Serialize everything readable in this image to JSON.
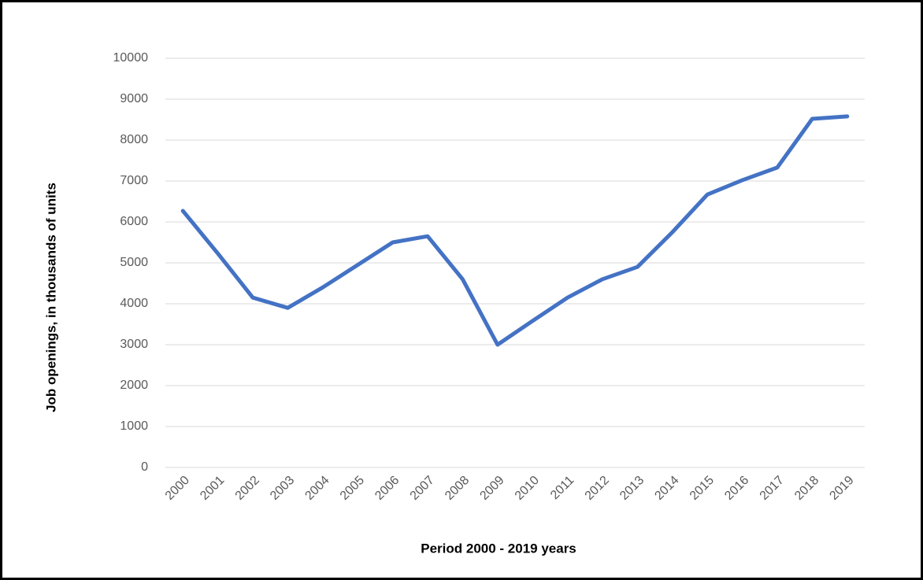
{
  "chart_data": {
    "type": "line",
    "x_label": "Period 2000 - 2019 years",
    "y_label": "Job openings, in thousands of units",
    "categories": [
      "2000",
      "2001",
      "2002",
      "2003",
      "2004",
      "2005",
      "2006",
      "2007",
      "2008",
      "2009",
      "2010",
      "2011",
      "2012",
      "2013",
      "2014",
      "2015",
      "2016",
      "2017",
      "2018",
      "2019"
    ],
    "series": [
      {
        "name": "Job openings",
        "color": "#4472c4",
        "values": [
          6270,
          5230,
          4150,
          3900,
          4400,
          4950,
          5500,
          5650,
          4600,
          3000,
          3580,
          4150,
          4600,
          4900,
          5750,
          6670,
          7020,
          7330,
          8520,
          8580
        ]
      }
    ],
    "ylim": [
      0,
      10000
    ],
    "yticks": [
      0,
      1000,
      2000,
      3000,
      4000,
      5000,
      6000,
      7000,
      8000,
      9000,
      10000
    ],
    "grid": true
  }
}
